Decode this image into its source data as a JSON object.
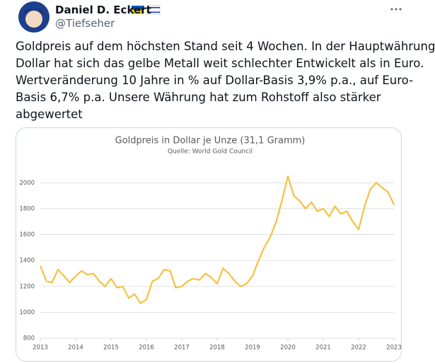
{
  "tweet": {
    "author": "Daniel D. Eckert",
    "handle": "@Tiefseher",
    "text_lines": [
      "Goldpreis auf dem höchsten Stand seit 4 Wochen. In der Hauptwährung",
      "Dollar hat sich das gelbe Metall weit schlechter Entwickelt als in Euro.",
      "Wertveränderung 10 Jahre in % auf Dollar-Basis 3,9% p.a., auf Euro-",
      "Basis 6,7% p.a. Unsere Währung hat zum Rohstoff also stärker",
      "abgewertet"
    ]
  },
  "chart_data": {
    "type": "line",
    "title": "Goldpreis in Dollar je Unze (31,1 Gramm)",
    "subtitle": "Quelle: World Gold Council",
    "x": [
      2013,
      2013.17,
      2013.33,
      2013.5,
      2013.67,
      2013.83,
      2014,
      2014.17,
      2014.33,
      2014.5,
      2014.67,
      2014.83,
      2015,
      2015.17,
      2015.33,
      2015.5,
      2015.67,
      2015.83,
      2016,
      2016.17,
      2016.33,
      2016.5,
      2016.67,
      2016.83,
      2017,
      2017.17,
      2017.33,
      2017.5,
      2017.67,
      2017.83,
      2018,
      2018.17,
      2018.33,
      2018.5,
      2018.67,
      2018.83,
      2019,
      2019.17,
      2019.33,
      2019.5,
      2019.67,
      2019.83,
      2020,
      2020.17,
      2020.33,
      2020.5,
      2020.67,
      2020.83,
      2021,
      2021.17,
      2021.33,
      2021.5,
      2021.67,
      2021.83,
      2022,
      2022.17,
      2022.33,
      2022.5,
      2022.67,
      2022.83,
      2023
    ],
    "values": [
      1360,
      1240,
      1230,
      1330,
      1280,
      1230,
      1280,
      1320,
      1290,
      1300,
      1240,
      1200,
      1260,
      1190,
      1200,
      1110,
      1140,
      1070,
      1100,
      1240,
      1260,
      1330,
      1320,
      1190,
      1200,
      1240,
      1260,
      1250,
      1300,
      1270,
      1220,
      1340,
      1300,
      1240,
      1200,
      1220,
      1280,
      1400,
      1500,
      1580,
      1700,
      1860,
      2050,
      1900,
      1860,
      1800,
      1850,
      1780,
      1800,
      1740,
      1820,
      1760,
      1780,
      1700,
      1640,
      1820,
      1950,
      2000,
      1960,
      1930,
      1830
    ],
    "color": "#f4c142",
    "xlim": [
      2013,
      2023
    ],
    "xticks": [
      2013,
      2014,
      2015,
      2016,
      2017,
      2018,
      2019,
      2020,
      2021,
      2022,
      2023
    ],
    "ylim": [
      800,
      2100
    ],
    "yticks": [
      800,
      1000,
      1200,
      1400,
      1600,
      1800,
      2000
    ],
    "grid": true
  }
}
